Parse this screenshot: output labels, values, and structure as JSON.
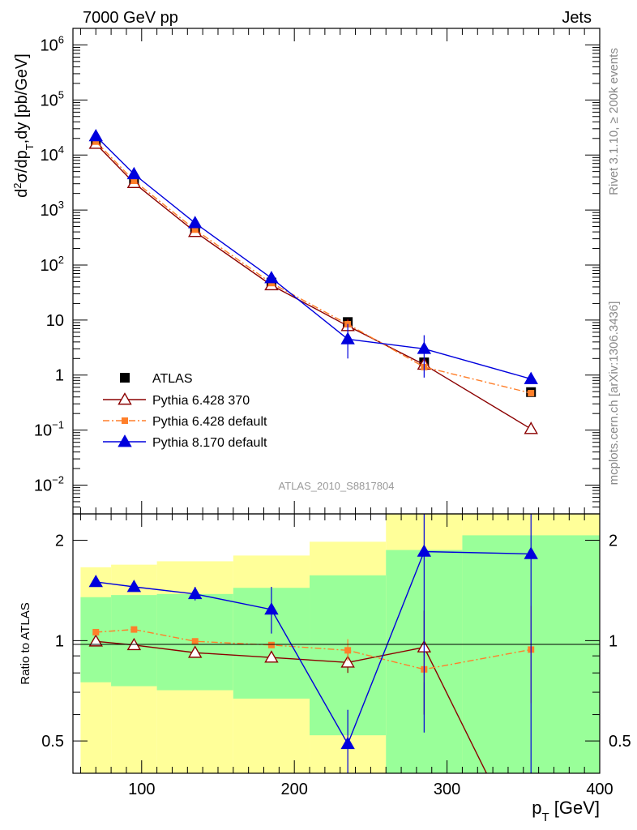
{
  "header": {
    "left_title": "7000 GeV pp",
    "right_title": "Jets"
  },
  "side_text": {
    "rivet": "Rivet 3.1.10, ≥ 200k events",
    "mcplots": "mcplots.cern.ch [arXiv:1306.3436]"
  },
  "analysis_label": "ATLAS_2010_S8817804",
  "axes": {
    "top_ylabel_parts": [
      "d",
      "2",
      "σ/dp",
      "T",
      ",dy [pb/GeV]"
    ],
    "bottom_ylabel": "Ratio to ATLAS",
    "xlabel_main": "p",
    "xlabel_sub": "T",
    "xlabel_unit": " [GeV]"
  },
  "colors": {
    "data": "#000000",
    "pythia6_370": "#8b0000",
    "pythia6_default": "#ff7f2a",
    "pythia8_default": "#0000dd",
    "band_inner": "#99ff99",
    "band_outer": "#ffff99"
  },
  "legend": [
    {
      "key": "data",
      "label": "ATLAS"
    },
    {
      "key": "p6_370",
      "label": "Pythia 6.428 370"
    },
    {
      "key": "p6_def",
      "label": "Pythia 6.428 default"
    },
    {
      "key": "p8_def",
      "label": "Pythia 8.170 default"
    }
  ],
  "chart_data": {
    "type": "scatter",
    "x_range": [
      55,
      400
    ],
    "x_ticks": [
      100,
      200,
      300,
      400
    ],
    "x_tick_labels": [
      "100",
      "200",
      "300",
      "400"
    ],
    "bins": [
      [
        60,
        80
      ],
      [
        80,
        110
      ],
      [
        110,
        160
      ],
      [
        160,
        210
      ],
      [
        210,
        260
      ],
      [
        260,
        310
      ],
      [
        310,
        400
      ]
    ],
    "main": {
      "y_scale": "log",
      "y_range": [
        0.003,
        2000000
      ],
      "y_tick_labels": [
        {
          "v": 1000000,
          "base": "10",
          "exp": "6"
        },
        {
          "v": 100000,
          "base": "10",
          "exp": "5"
        },
        {
          "v": 10000,
          "base": "10",
          "exp": "4"
        },
        {
          "v": 1000,
          "base": "10",
          "exp": "3"
        },
        {
          "v": 100,
          "base": "10",
          "exp": "2"
        },
        {
          "v": 10,
          "base": "10",
          "exp": ""
        },
        {
          "v": 1,
          "base": "1",
          "exp": ""
        },
        {
          "v": 0.1,
          "base": "10",
          "exp": "−1"
        },
        {
          "v": 0.01,
          "base": "10",
          "exp": "−2"
        }
      ],
      "data": {
        "x": [
          70,
          95,
          135,
          185,
          235,
          285,
          355
        ],
        "y": [
          16500,
          3200,
          440,
          48,
          9.2,
          1.7,
          0.49
        ]
      },
      "series": [
        {
          "name": "Pythia 6.428 370",
          "key": "p6_370",
          "x": [
            70,
            95,
            135,
            185,
            235,
            285,
            355
          ],
          "y": [
            16000,
            3100,
            400,
            43,
            7.8,
            1.55,
            0.105
          ],
          "err_lo": [
            null,
            null,
            null,
            null,
            null,
            null,
            0.102
          ],
          "err_hi": [
            null,
            null,
            null,
            null,
            null,
            null,
            0.14
          ]
        },
        {
          "name": "Pythia 6.428 default",
          "key": "p6_def",
          "x": [
            70,
            95,
            135,
            185,
            235,
            285,
            355
          ],
          "y": [
            17500,
            3400,
            440,
            47,
            8.4,
            1.4,
            0.47
          ],
          "err_lo": [
            null,
            null,
            null,
            null,
            null,
            null,
            null
          ],
          "err_hi": [
            null,
            null,
            null,
            null,
            null,
            null,
            null
          ]
        },
        {
          "name": "Pythia 8.170 default",
          "key": "p8_def",
          "x": [
            70,
            95,
            135,
            185,
            235,
            285,
            355
          ],
          "y": [
            22000,
            4500,
            580,
            58,
            4.5,
            3.0,
            0.85
          ],
          "err_lo": [
            null,
            null,
            null,
            null,
            2.0,
            0.9,
            null
          ],
          "err_hi": [
            null,
            null,
            null,
            null,
            8.5,
            5.3,
            1.7
          ]
        }
      ]
    },
    "ratio": {
      "y_scale": "log",
      "y_range": [
        0.4,
        2.4
      ],
      "y_ticks": [
        0.5,
        1,
        2
      ],
      "y_tick_labels": [
        "0.5",
        "1",
        "2"
      ],
      "band_inner": [
        [
          0.75,
          1.35
        ],
        [
          0.73,
          1.37
        ],
        [
          0.71,
          1.38
        ],
        [
          0.67,
          1.44
        ],
        [
          0.52,
          1.57
        ],
        [
          0.35,
          1.87
        ],
        [
          0.35,
          2.07
        ]
      ],
      "band_outer": [
        [
          0.36,
          1.66
        ],
        [
          0.35,
          1.69
        ],
        [
          0.35,
          1.73
        ],
        [
          0.35,
          1.8
        ],
        [
          0.35,
          1.98
        ],
        [
          0.35,
          2.4
        ],
        [
          0.35,
          2.4
        ]
      ],
      "series": [
        {
          "name": "Pythia 6.428 370",
          "key": "p6_370",
          "x": [
            70,
            95,
            135,
            185,
            235,
            285,
            355
          ],
          "y": [
            0.995,
            0.97,
            0.92,
            0.89,
            0.86,
            0.955,
            0.215
          ],
          "err_lo": [
            null,
            null,
            null,
            0.86,
            0.8,
            0.6,
            null
          ],
          "err_hi": [
            null,
            null,
            null,
            0.92,
            0.93,
            1.23,
            null
          ]
        },
        {
          "name": "Pythia 6.428 default",
          "key": "p6_def",
          "x": [
            70,
            95,
            135,
            185,
            235,
            285,
            355
          ],
          "y": [
            1.06,
            1.08,
            0.995,
            0.97,
            0.935,
            0.82,
            0.94
          ],
          "err_lo": [
            null,
            null,
            null,
            null,
            0.87,
            0.75,
            0.65
          ],
          "err_hi": [
            null,
            null,
            null,
            null,
            1.01,
            0.9,
            1.27
          ]
        },
        {
          "name": "Pythia 8.170 default",
          "key": "p8_def",
          "x": [
            70,
            95,
            135,
            185,
            235,
            285,
            355
          ],
          "y": [
            1.5,
            1.45,
            1.38,
            1.24,
            0.49,
            1.85,
            1.82
          ],
          "err_lo": [
            null,
            null,
            1.32,
            1.05,
            0.38,
            0.53,
            0.38
          ],
          "err_hi": [
            null,
            null,
            1.45,
            1.45,
            0.62,
            2.4,
            2.4
          ]
        }
      ]
    }
  }
}
